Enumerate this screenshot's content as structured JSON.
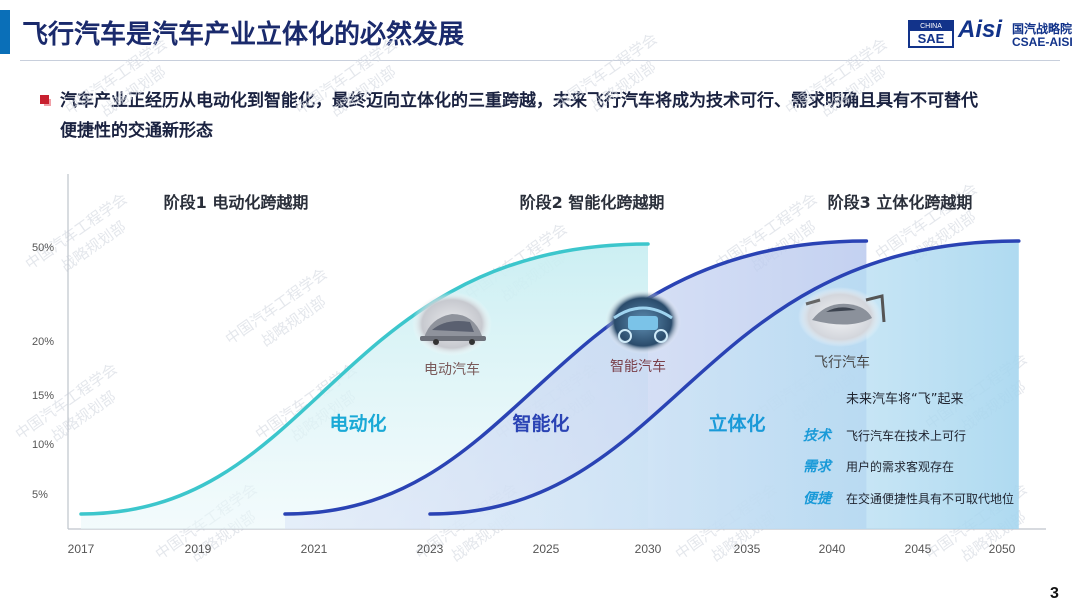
{
  "page_title": "飞行汽车是汽车产业立体化的必然发展",
  "logo": {
    "box_top": "CHINA",
    "box_main": "SAE",
    "brand": "Aisi",
    "cn_name": "国汽战略院",
    "en_name": "CSAE-AISI"
  },
  "summary_lines": [
    "汽车产业正经历从电动化到智能化，最终迈向立体化的三重跨越，未来飞行汽车将成为技术可行、需求明确且具有不可替代",
    "便捷性的交通新形态"
  ],
  "page_number": "3",
  "watermark": {
    "line1": "中国汽车工程学会",
    "line2": "战略规划部"
  },
  "colors": {
    "electric_curve": "#3cc6cc",
    "intelligent_curve": "#2a43b4",
    "aerial_curve": "#2a43b4",
    "electric_label": "#1aa9d6",
    "intelligent_label": "#2a43b4",
    "aerial_label": "#1a9ad8",
    "highlight_word": "#1a9ad8"
  },
  "chart_data": {
    "type": "line",
    "x_ticks": [
      "2017",
      "2019",
      "2021",
      "2023",
      "2025",
      "2030",
      "2035",
      "2040",
      "2045",
      "2050"
    ],
    "y_ticks": [
      "5%",
      "10%",
      "15%",
      "20%",
      "50%"
    ],
    "series": [
      {
        "name": "电动化",
        "stage_label": "阶段1 电动化跨越期",
        "image_label": "电动汽车",
        "image_icon": "electric-car-icon",
        "x_start": 2017,
        "x_end": 2030,
        "y_start": 3,
        "y_end": 52
      },
      {
        "name": "智能化",
        "stage_label": "阶段2 智能化跨越期",
        "image_label": "智能汽车",
        "image_icon": "smart-cockpit-icon",
        "x_start": 2020.5,
        "x_end": 2042,
        "y_start": 3,
        "y_end": 54
      },
      {
        "name": "立体化",
        "stage_label": "阶段3 立体化跨越期",
        "image_label": "飞行汽车",
        "image_icon": "flying-car-icon",
        "x_start": 2023,
        "x_end": 2051,
        "y_start": 3,
        "y_end": 54
      }
    ],
    "annotations": {
      "heading": "未来汽车将“飞”起来",
      "items": [
        {
          "key": "技术",
          "text": "飞行汽车在技术上可行"
        },
        {
          "key": "需求",
          "text": "用户的需求客观存在"
        },
        {
          "key": "便捷",
          "text": "在交通便捷性具有不可取代地位"
        }
      ]
    }
  }
}
